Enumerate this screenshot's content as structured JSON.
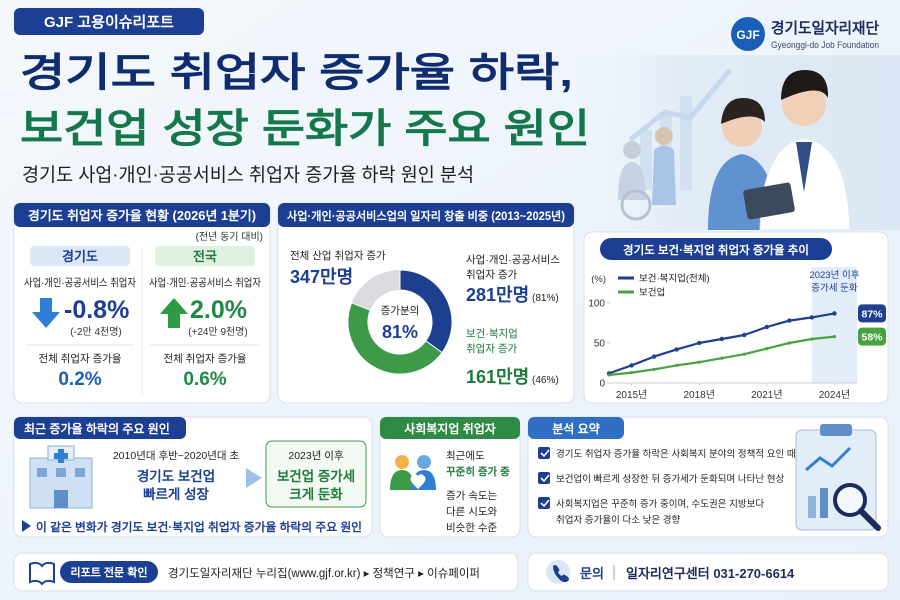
{
  "header": {
    "badge": "GJF 고용이슈리포트",
    "title_lines": [
      "경기도 취업자 증가율 하락,",
      "보건업 성장 둔화가 주요 원인"
    ],
    "subtitle": "경기도 사업·개인·공공서비스 취업자 증가율 하락 원인 분석",
    "logo": {
      "mark": "GJF",
      "name": "경기도일자리재단",
      "name_en": "Gyeonggi-do Job Foundation"
    }
  },
  "current_status": {
    "title": "경기도 취업자 증가율 현황 (2026년 1분기)",
    "note": "(전년 동기 대비)",
    "regions": [
      {
        "name": "경기도",
        "group_label": "사업·개인·공공서비스 취업자",
        "change": "-0.8%",
        "change_count": "(-2만 4천명)",
        "total_label": "전체 취업자 증가율",
        "total_change": "0.2%"
      },
      {
        "name": "전국",
        "group_label": "사업·개인·공공서비스 취업자",
        "change": "2.0%",
        "change_count": "(+24만 9천명)",
        "total_label": "전체 취업자 증가율",
        "total_change": "0.6%"
      }
    ]
  },
  "job_creation": {
    "title": "사업·개인·공공서비스업의 일자리 창출 비중 (2013~2025년)",
    "total_label": "전체 산업 취업자 증가",
    "total_value": "347만명",
    "center_label": "증가분의",
    "center_value": "81%",
    "services": {
      "label_lines": [
        "사업·개인·공공서비스",
        "취업자 증가"
      ],
      "value": "281만명"
    },
    "health_welfare": {
      "label_lines": [
        "보건·복지업",
        "취업자 증가"
      ],
      "value": "161만명"
    }
  },
  "chart_data": [
    {
      "type": "pie",
      "values": [
        81,
        46
      ],
      "value_labels": [
        "(81%)",
        "(46%)"
      ],
      "colors": [
        "#1d3f8f",
        "#3c9a49"
      ],
      "base_color": "#d9dbe0"
    },
    {
      "type": "line",
      "title": "경기도 보건·복지업 취업자 증가율 추이",
      "y_unit_label": "(%)",
      "x": [
        2014,
        2015,
        2016,
        2017,
        2018,
        2019,
        2020,
        2021,
        2022,
        2023,
        2024
      ],
      "xlim": [
        2013.6,
        2025
      ],
      "xticks": [
        {
          "value": 2015,
          "label": "2015년"
        },
        {
          "value": 2018,
          "label": "2018년"
        },
        {
          "value": 2021,
          "label": "2021년"
        },
        {
          "value": 2024,
          "label": "2024년"
        }
      ],
      "ylim": [
        0,
        115
      ],
      "yticks": [
        0,
        50,
        100
      ],
      "series": [
        {
          "name": "보건·복지업(전체)",
          "color": "#1d3f8f",
          "values": [
            12,
            22,
            33,
            42,
            50,
            55,
            60,
            70,
            78,
            82,
            87
          ],
          "end_label": "87%"
        },
        {
          "name": "보건업",
          "color": "#46a340",
          "values": [
            10,
            13,
            17,
            22,
            26,
            31,
            36,
            43,
            50,
            55,
            58
          ],
          "end_label": "58%"
        }
      ],
      "annotation": {
        "lines": [
          "2023년 이후",
          "증가세 둔화"
        ],
        "from": 2023
      },
      "grid": false
    }
  ],
  "causes": {
    "title": "최근 증가율 하락의 주요 원인",
    "before": {
      "period": "2010년대 후반~2020년대 초",
      "lines": [
        "경기도 보건업",
        "빠르게 성장"
      ]
    },
    "after": {
      "period": "2023년 이후",
      "lines": [
        "보건업 증가세",
        "크게 둔화"
      ]
    },
    "conclusion": "이 같은 변화가 경기도 보건·복지업 취업자 증가율 하락의 주요 원인"
  },
  "social_welfare": {
    "title": "사회복지업 취업자",
    "status_lines": [
      "최근에도",
      "꾸준히 증가 중"
    ],
    "pace_lines": [
      "증가 속도는",
      "다른 시도와",
      "비슷한 수준"
    ]
  },
  "summary": {
    "title": "분석 요약",
    "items": [
      [
        "경기도 취업자 증가율 하락은 사회복지 분야의 정책적 요인 때문이 아님"
      ],
      [
        "보건업이 빠르게 성장한 뒤 증가세가 둔화되며 나타난 현상"
      ],
      [
        "사회복지업은 꾸준히 증가 중이며, 수도권은 지방보다",
        "취업자 증가율이 다소 낮은 경향"
      ]
    ]
  },
  "footer": {
    "report_button": "리포트 전문 확인",
    "report_path": "경기도일자리재단 누리집(www.gjf.or.kr) ▸ 정책연구 ▸ 이슈페이퍼",
    "contact_label": "문의",
    "contact": "일자리연구센터 031-270-6614"
  }
}
